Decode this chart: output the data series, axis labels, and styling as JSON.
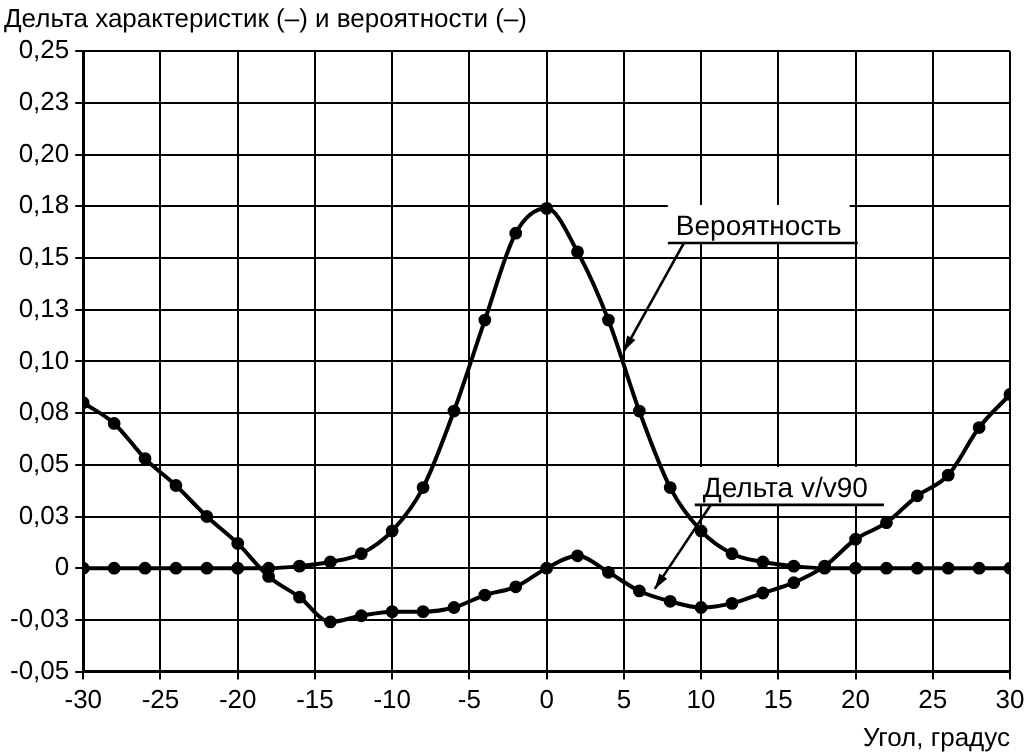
{
  "chart_data": {
    "type": "line",
    "title": "Дельта характеристик (–) и вероятности (–)",
    "xlabel": "Угол, градус",
    "x": [
      -30,
      -28,
      -26,
      -24,
      -22,
      -20,
      -18,
      -16,
      -14,
      -12,
      -10,
      -8,
      -6,
      -4,
      -2,
      0,
      2,
      4,
      6,
      8,
      10,
      12,
      14,
      16,
      18,
      20,
      22,
      24,
      26,
      28,
      30
    ],
    "series": [
      {
        "color": "#000000",
        "values": [
          0,
          0,
          0,
          0,
          0,
          0,
          0,
          0.001,
          0.003,
          0.007,
          0.018,
          0.039,
          0.076,
          0.12,
          0.162,
          0.174,
          0.153,
          0.12,
          0.076,
          0.039,
          0.018,
          0.007,
          0.003,
          0.001,
          0,
          0,
          0,
          0,
          0,
          0,
          0
        ]
      },
      {
        "color": "#000000",
        "values": [
          0.08,
          0.07,
          0.053,
          0.04,
          0.025,
          0.012,
          -0.004,
          -0.014,
          -0.026,
          -0.023,
          -0.021,
          -0.021,
          -0.019,
          -0.013,
          -0.009,
          0,
          0.006,
          -0.002,
          -0.011,
          -0.016,
          -0.019,
          -0.017,
          -0.012,
          -0.007,
          0.001,
          0.014,
          0.022,
          0.035,
          0.045,
          0.068,
          0.084
        ]
      }
    ],
    "annotations": [
      {
        "text": "Вероятность",
        "x": 5,
        "y": 0.105
      },
      {
        "text": "Дельта v/v90",
        "x": 7,
        "y": -0.01
      }
    ],
    "xlim": [
      -30,
      30
    ],
    "xticks": [
      -30,
      -25,
      -20,
      -15,
      -10,
      -5,
      0,
      5,
      10,
      15,
      20,
      25,
      30
    ],
    "ylim": [
      -0.05,
      0.25
    ],
    "yticks": [
      {
        "value": -0.05,
        "label": "-0,05"
      },
      {
        "value": -0.025,
        "label": "-0,03"
      },
      0,
      {
        "value": 0.025,
        "label": "0,03"
      },
      {
        "value": 0.05,
        "label": "0,05"
      },
      {
        "value": 0.075,
        "label": "0,08"
      },
      {
        "value": 0.1,
        "label": "0,10"
      },
      {
        "value": 0.125,
        "label": "0,13"
      },
      {
        "value": 0.15,
        "label": "0,15"
      },
      {
        "value": 0.175,
        "label": "0,18"
      },
      {
        "value": 0.2,
        "label": "0,20"
      },
      {
        "value": 0.225,
        "label": "0,23"
      },
      {
        "value": 0.25,
        "label": "0,25"
      }
    ],
    "grid": true,
    "marker": "circle",
    "line_style": "solid"
  }
}
